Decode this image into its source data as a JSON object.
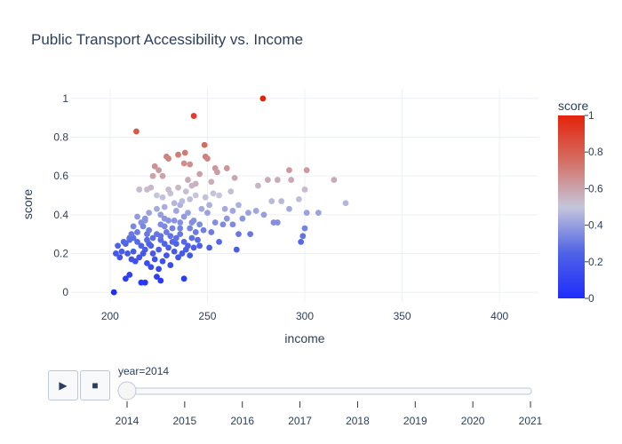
{
  "chart_data": {
    "type": "scatter",
    "title": "Public Transport Accessibility vs. Income",
    "xlabel": "income",
    "ylabel": "score",
    "xlim": [
      180,
      420
    ],
    "ylim": [
      -0.05,
      1.05
    ],
    "x_ticks": [
      200,
      250,
      300,
      350,
      400
    ],
    "y_ticks": [
      0,
      0.2,
      0.4,
      0.6,
      0.8,
      1
    ],
    "grid": true,
    "colorbar": {
      "title": "score",
      "range": [
        0,
        1
      ],
      "ticks": [
        0,
        0.2,
        0.4,
        0.6,
        0.8,
        1
      ],
      "colors": [
        "#1f2dfc",
        "#4f63e6",
        "#c5c6db",
        "#d46f64",
        "#e4230b"
      ]
    },
    "points": [
      [
        202,
        0.0
      ],
      [
        213.5,
        0.83
      ],
      [
        243,
        0.91
      ],
      [
        278.5,
        1.0
      ],
      [
        248.5,
        0.76
      ],
      [
        238.5,
        0.72
      ],
      [
        235,
        0.71
      ],
      [
        241,
        0.66
      ],
      [
        238,
        0.665
      ],
      [
        229,
        0.7
      ],
      [
        230,
        0.69
      ],
      [
        249,
        0.7
      ],
      [
        250,
        0.69
      ],
      [
        254,
        0.64
      ],
      [
        260,
        0.64
      ],
      [
        255,
        0.62
      ],
      [
        292,
        0.63
      ],
      [
        301,
        0.63
      ],
      [
        315,
        0.58
      ],
      [
        281,
        0.58
      ],
      [
        286,
        0.58
      ],
      [
        293,
        0.58
      ],
      [
        223,
        0.65
      ],
      [
        225,
        0.63
      ],
      [
        227,
        0.6
      ],
      [
        222,
        0.6
      ],
      [
        215,
        0.53
      ],
      [
        219,
        0.53
      ],
      [
        221,
        0.54
      ],
      [
        276,
        0.55
      ],
      [
        252,
        0.57
      ],
      [
        242,
        0.55
      ],
      [
        300,
        0.53
      ],
      [
        262,
        0.52
      ],
      [
        264,
        0.59
      ],
      [
        246,
        0.61
      ],
      [
        240,
        0.58
      ],
      [
        235,
        0.54
      ],
      [
        231,
        0.51
      ],
      [
        236,
        0.45
      ],
      [
        241,
        0.48
      ],
      [
        244,
        0.5
      ],
      [
        249,
        0.49
      ],
      [
        253,
        0.51
      ],
      [
        228,
        0.44
      ],
      [
        224,
        0.43
      ],
      [
        220,
        0.41
      ],
      [
        218,
        0.38
      ],
      [
        216,
        0.36
      ],
      [
        226,
        0.4
      ],
      [
        234,
        0.42
      ],
      [
        238,
        0.39
      ],
      [
        243,
        0.37
      ],
      [
        246,
        0.35
      ],
      [
        250,
        0.41
      ],
      [
        254,
        0.36
      ],
      [
        259,
        0.43
      ],
      [
        263,
        0.42
      ],
      [
        268,
        0.38
      ],
      [
        271,
        0.41
      ],
      [
        275,
        0.42
      ],
      [
        279,
        0.4
      ],
      [
        283,
        0.47
      ],
      [
        288,
        0.47
      ],
      [
        292,
        0.43
      ],
      [
        297,
        0.48
      ],
      [
        301,
        0.41
      ],
      [
        307,
        0.41
      ],
      [
        321,
        0.46
      ],
      [
        284,
        0.36
      ],
      [
        286,
        0.36
      ],
      [
        272,
        0.3
      ],
      [
        266,
        0.3
      ],
      [
        263,
        0.35
      ],
      [
        258,
        0.35
      ],
      [
        252,
        0.31
      ],
      [
        300,
        0.33
      ],
      [
        299,
        0.29
      ],
      [
        298,
        0.26
      ],
      [
        204,
        0.24
      ],
      [
        206,
        0.21
      ],
      [
        203,
        0.2
      ],
      [
        205,
        0.18
      ],
      [
        208,
        0.25
      ],
      [
        210,
        0.27
      ],
      [
        212,
        0.28
      ],
      [
        214,
        0.26
      ],
      [
        216,
        0.24
      ],
      [
        218,
        0.22
      ],
      [
        220,
        0.25
      ],
      [
        222,
        0.28
      ],
      [
        224,
        0.3
      ],
      [
        226,
        0.27
      ],
      [
        228,
        0.25
      ],
      [
        230,
        0.23
      ],
      [
        232,
        0.26
      ],
      [
        234,
        0.28
      ],
      [
        236,
        0.3
      ],
      [
        238,
        0.26
      ],
      [
        240,
        0.24
      ],
      [
        242,
        0.28
      ],
      [
        244,
        0.31
      ],
      [
        232,
        0.33
      ],
      [
        228,
        0.34
      ],
      [
        220,
        0.32
      ],
      [
        214,
        0.31
      ],
      [
        212,
        0.34
      ],
      [
        218,
        0.37
      ],
      [
        209,
        0.2
      ],
      [
        211,
        0.17
      ],
      [
        213,
        0.16
      ],
      [
        215,
        0.18
      ],
      [
        217,
        0.2
      ],
      [
        219,
        0.15
      ],
      [
        221,
        0.13
      ],
      [
        223,
        0.17
      ],
      [
        225,
        0.12
      ],
      [
        227,
        0.16
      ],
      [
        229,
        0.19
      ],
      [
        231,
        0.14
      ],
      [
        233,
        0.21
      ],
      [
        235,
        0.18
      ],
      [
        237,
        0.2
      ],
      [
        239,
        0.22
      ],
      [
        241,
        0.19
      ],
      [
        243,
        0.23
      ],
      [
        246,
        0.24
      ],
      [
        251,
        0.23
      ],
      [
        256,
        0.26
      ],
      [
        265,
        0.22
      ],
      [
        208,
        0.07
      ],
      [
        210,
        0.09
      ],
      [
        216,
        0.05
      ],
      [
        218,
        0.05
      ],
      [
        224,
        0.08
      ],
      [
        226,
        0.06
      ],
      [
        238,
        0.07
      ],
      [
        233,
        0.37
      ],
      [
        229,
        0.31
      ],
      [
        226,
        0.35
      ],
      [
        210,
        0.28
      ],
      [
        207,
        0.26
      ],
      [
        222,
        0.2
      ],
      [
        236,
        0.36
      ],
      [
        241,
        0.33
      ],
      [
        245,
        0.27
      ],
      [
        248,
        0.32
      ],
      [
        225,
        0.22
      ],
      [
        219,
        0.27
      ],
      [
        231,
        0.29
      ],
      [
        240,
        0.41
      ],
      [
        237,
        0.47
      ],
      [
        233,
        0.46
      ],
      [
        227,
        0.49
      ],
      [
        224,
        0.5
      ],
      [
        230,
        0.53
      ],
      [
        239,
        0.52
      ],
      [
        244,
        0.56
      ],
      [
        256,
        0.5
      ],
      [
        247,
        0.43
      ],
      [
        251,
        0.45
      ],
      [
        260,
        0.38
      ],
      [
        266,
        0.45
      ],
      [
        214,
        0.39
      ],
      [
        217,
        0.34
      ],
      [
        211,
        0.3
      ],
      [
        234,
        0.25
      ],
      [
        242,
        0.36
      ],
      [
        226,
        0.29
      ],
      [
        221,
        0.24
      ],
      [
        212,
        0.21
      ],
      [
        230,
        0.37
      ],
      [
        228,
        0.38
      ],
      [
        236,
        0.33
      ],
      [
        219,
        0.3
      ]
    ]
  },
  "slider": {
    "current_label": "year=2014",
    "play_icon": "▶",
    "stop_icon": "■",
    "years": [
      "2014",
      "2015",
      "2016",
      "2017",
      "2018",
      "2019",
      "2020",
      "2021"
    ],
    "active_index": 0
  }
}
